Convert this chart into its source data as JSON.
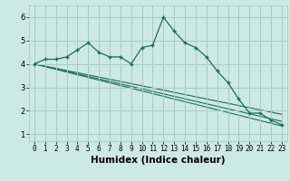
{
  "xlabel": "Humidex (Indice chaleur)",
  "xlim": [
    -0.5,
    23.5
  ],
  "ylim": [
    0.7,
    6.5
  ],
  "xtick_vals": [
    0,
    1,
    2,
    3,
    4,
    5,
    6,
    7,
    8,
    9,
    10,
    11,
    12,
    13,
    14,
    15,
    16,
    17,
    18,
    19,
    20,
    21,
    22,
    23
  ],
  "ytick_vals": [
    1,
    2,
    3,
    4,
    5,
    6
  ],
  "bg_color": "#cce9e3",
  "grid_color": "#aaccc6",
  "line_color": "#1e6b5e",
  "series1_x": [
    0,
    1,
    2,
    3,
    4,
    5,
    6,
    7,
    8,
    9,
    10,
    11,
    12,
    13,
    14,
    15,
    16,
    17,
    18,
    19,
    20,
    21,
    22,
    23
  ],
  "series1_y": [
    4.0,
    4.2,
    4.2,
    4.3,
    4.6,
    4.9,
    4.5,
    4.3,
    4.3,
    4.0,
    4.7,
    4.8,
    6.0,
    5.4,
    4.9,
    4.7,
    4.3,
    3.7,
    3.2,
    2.5,
    1.9,
    1.9,
    1.6,
    1.4
  ],
  "series2_x": [
    0,
    23
  ],
  "series2_y": [
    4.0,
    1.85
  ],
  "series3_x": [
    0,
    23
  ],
  "series3_y": [
    4.0,
    1.55
  ],
  "series4_x": [
    0,
    23
  ],
  "series4_y": [
    4.0,
    1.35
  ],
  "font_size_ticks": 5.5,
  "font_size_xlabel": 7.5
}
